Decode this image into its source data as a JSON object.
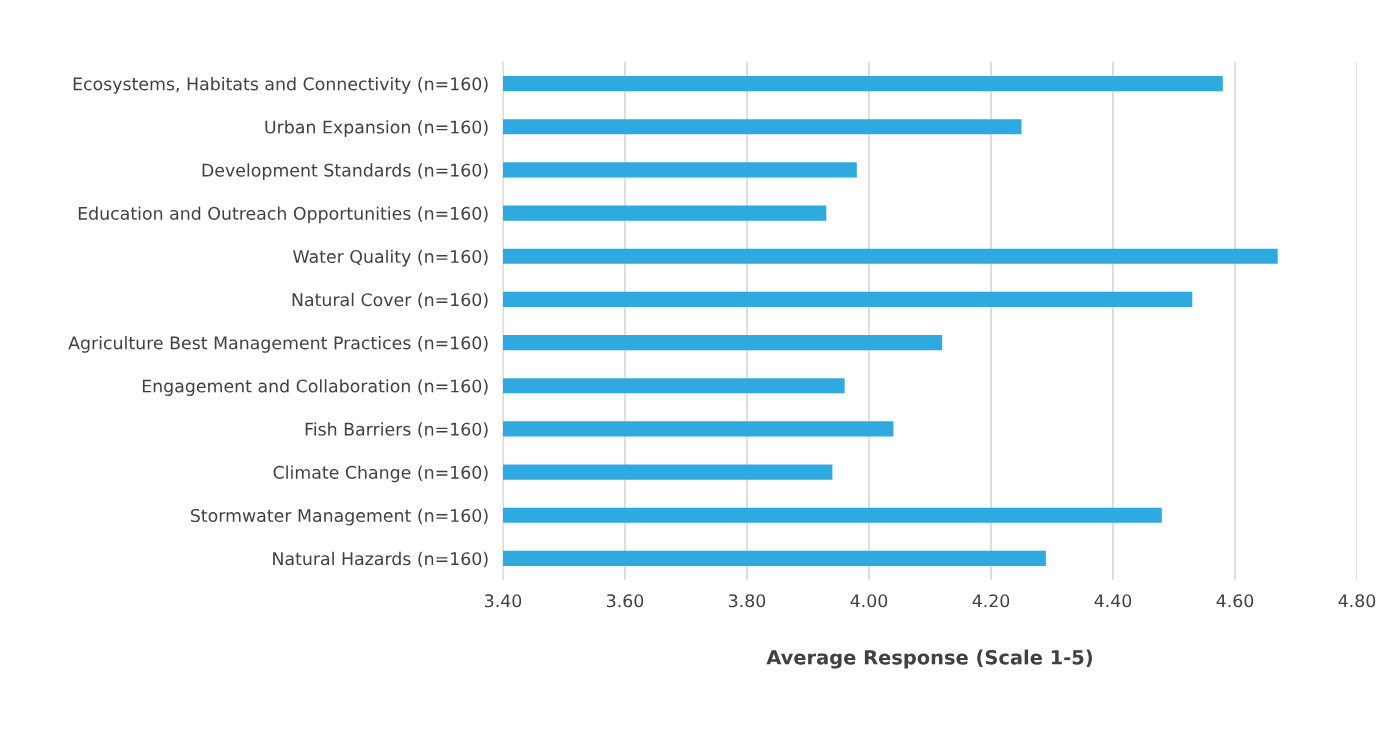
{
  "chart_data": {
    "type": "bar",
    "orientation": "horizontal",
    "xlabel": "Average Response (Scale 1-5)",
    "categories": [
      "Ecosystems, Habitats and Connectivity (n=160)",
      "Urban Expansion (n=160)",
      "Development Standards (n=160)",
      "Education and Outreach Opportunities (n=160)",
      "Water Quality (n=160)",
      "Natural Cover (n=160)",
      "Agriculture Best Management Practices (n=160)",
      "Engagement and Collaboration (n=160)",
      "Fish Barriers (n=160)",
      "Climate Change (n=160)",
      "Stormwater Management (n=160)",
      "Natural Hazards (n=160)"
    ],
    "values": [
      4.58,
      4.25,
      3.98,
      3.93,
      4.67,
      4.53,
      4.12,
      3.96,
      4.04,
      3.94,
      4.48,
      4.29
    ],
    "color": "#2eaae1",
    "xlim": [
      3.4,
      4.8
    ],
    "xticks": [
      {
        "value": 3.4,
        "label": "3.40"
      },
      {
        "value": 3.6,
        "label": "3.60"
      },
      {
        "value": 3.8,
        "label": "3.80"
      },
      {
        "value": 4.0,
        "label": "4.00"
      },
      {
        "value": 4.2,
        "label": "4.20"
      },
      {
        "value": 4.4,
        "label": "4.40"
      },
      {
        "value": 4.6,
        "label": "4.60"
      },
      {
        "value": 4.8,
        "label": "4.80"
      }
    ],
    "grid": "x"
  }
}
